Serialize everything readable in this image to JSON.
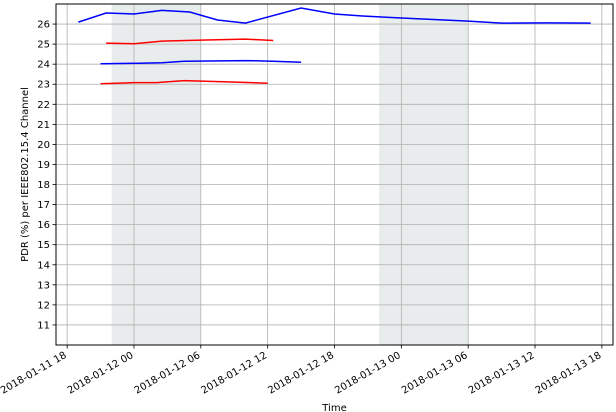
{
  "chart_data": {
    "type": "line",
    "title": "",
    "xlabel": "Time",
    "ylabel": "PDR (%) per IEEE802.15.4 Channel",
    "xlim": [
      "2018-01-11T17:00",
      "2018-01-13T19:00"
    ],
    "ylim": [
      10,
      27
    ],
    "grid": true,
    "legend": "none",
    "shaded_intervals": [
      {
        "start": "2018-01-11T22:00",
        "end": "2018-01-12T06:00",
        "color": "#e9ecec"
      },
      {
        "start": "2018-01-12T22:00",
        "end": "2018-01-13T06:00",
        "color": "#e9ecec"
      }
    ],
    "x_ticks": [
      {
        "value": "2018-01-11T18:00",
        "label": "2018-01-11 18"
      },
      {
        "value": "2018-01-12T00:00",
        "label": "2018-01-12 00"
      },
      {
        "value": "2018-01-12T06:00",
        "label": "2018-01-12 06"
      },
      {
        "value": "2018-01-12T12:00",
        "label": "2018-01-12 12"
      },
      {
        "value": "2018-01-12T18:00",
        "label": "2018-01-12 18"
      },
      {
        "value": "2018-01-13T00:00",
        "label": "2018-01-13 00"
      },
      {
        "value": "2018-01-13T06:00",
        "label": "2018-01-13 06"
      },
      {
        "value": "2018-01-13T12:00",
        "label": "2018-01-13 12"
      },
      {
        "value": "2018-01-13T18:00",
        "label": "2018-01-13 18"
      }
    ],
    "y_ticks": [
      11,
      12,
      13,
      14,
      15,
      16,
      17,
      18,
      19,
      20,
      21,
      22,
      23,
      24,
      25,
      26
    ],
    "series": [
      {
        "color": "#0000ff",
        "points": [
          {
            "x": "2018-01-11T19:00",
            "y": 26.1
          },
          {
            "x": "2018-01-11T21:30",
            "y": 26.55
          },
          {
            "x": "2018-01-12T00:00",
            "y": 26.5
          },
          {
            "x": "2018-01-12T02:30",
            "y": 26.68
          },
          {
            "x": "2018-01-12T05:00",
            "y": 26.6
          },
          {
            "x": "2018-01-12T07:30",
            "y": 26.2
          },
          {
            "x": "2018-01-12T10:00",
            "y": 26.05
          },
          {
            "x": "2018-01-12T15:00",
            "y": 26.8
          },
          {
            "x": "2018-01-12T18:00",
            "y": 26.5
          },
          {
            "x": "2018-01-12T20:30",
            "y": 26.4
          },
          {
            "x": "2018-01-13T00:00",
            "y": 26.3
          },
          {
            "x": "2018-01-13T06:00",
            "y": 26.15
          },
          {
            "x": "2018-01-13T09:00",
            "y": 26.05
          },
          {
            "x": "2018-01-13T13:00",
            "y": 26.06
          },
          {
            "x": "2018-01-13T17:00",
            "y": 26.05
          }
        ]
      },
      {
        "color": "#ff0000",
        "points": [
          {
            "x": "2018-01-11T21:30",
            "y": 25.05
          },
          {
            "x": "2018-01-12T00:00",
            "y": 25.02
          },
          {
            "x": "2018-01-12T02:30",
            "y": 25.15
          },
          {
            "x": "2018-01-12T06:00",
            "y": 25.2
          },
          {
            "x": "2018-01-12T10:00",
            "y": 25.25
          },
          {
            "x": "2018-01-12T12:30",
            "y": 25.18
          }
        ]
      },
      {
        "color": "#0000ff",
        "points": [
          {
            "x": "2018-01-11T21:00",
            "y": 24.02
          },
          {
            "x": "2018-01-12T00:30",
            "y": 24.05
          },
          {
            "x": "2018-01-12T02:30",
            "y": 24.07
          },
          {
            "x": "2018-01-12T04:30",
            "y": 24.15
          },
          {
            "x": "2018-01-12T10:00",
            "y": 24.18
          },
          {
            "x": "2018-01-12T12:30",
            "y": 24.15
          },
          {
            "x": "2018-01-12T15:00",
            "y": 24.1
          }
        ]
      },
      {
        "color": "#ff0000",
        "points": [
          {
            "x": "2018-01-11T21:00",
            "y": 23.02
          },
          {
            "x": "2018-01-12T00:00",
            "y": 23.08
          },
          {
            "x": "2018-01-12T02:00",
            "y": 23.08
          },
          {
            "x": "2018-01-12T04:30",
            "y": 23.18
          },
          {
            "x": "2018-01-12T08:00",
            "y": 23.12
          },
          {
            "x": "2018-01-12T12:00",
            "y": 23.05
          }
        ]
      }
    ]
  }
}
